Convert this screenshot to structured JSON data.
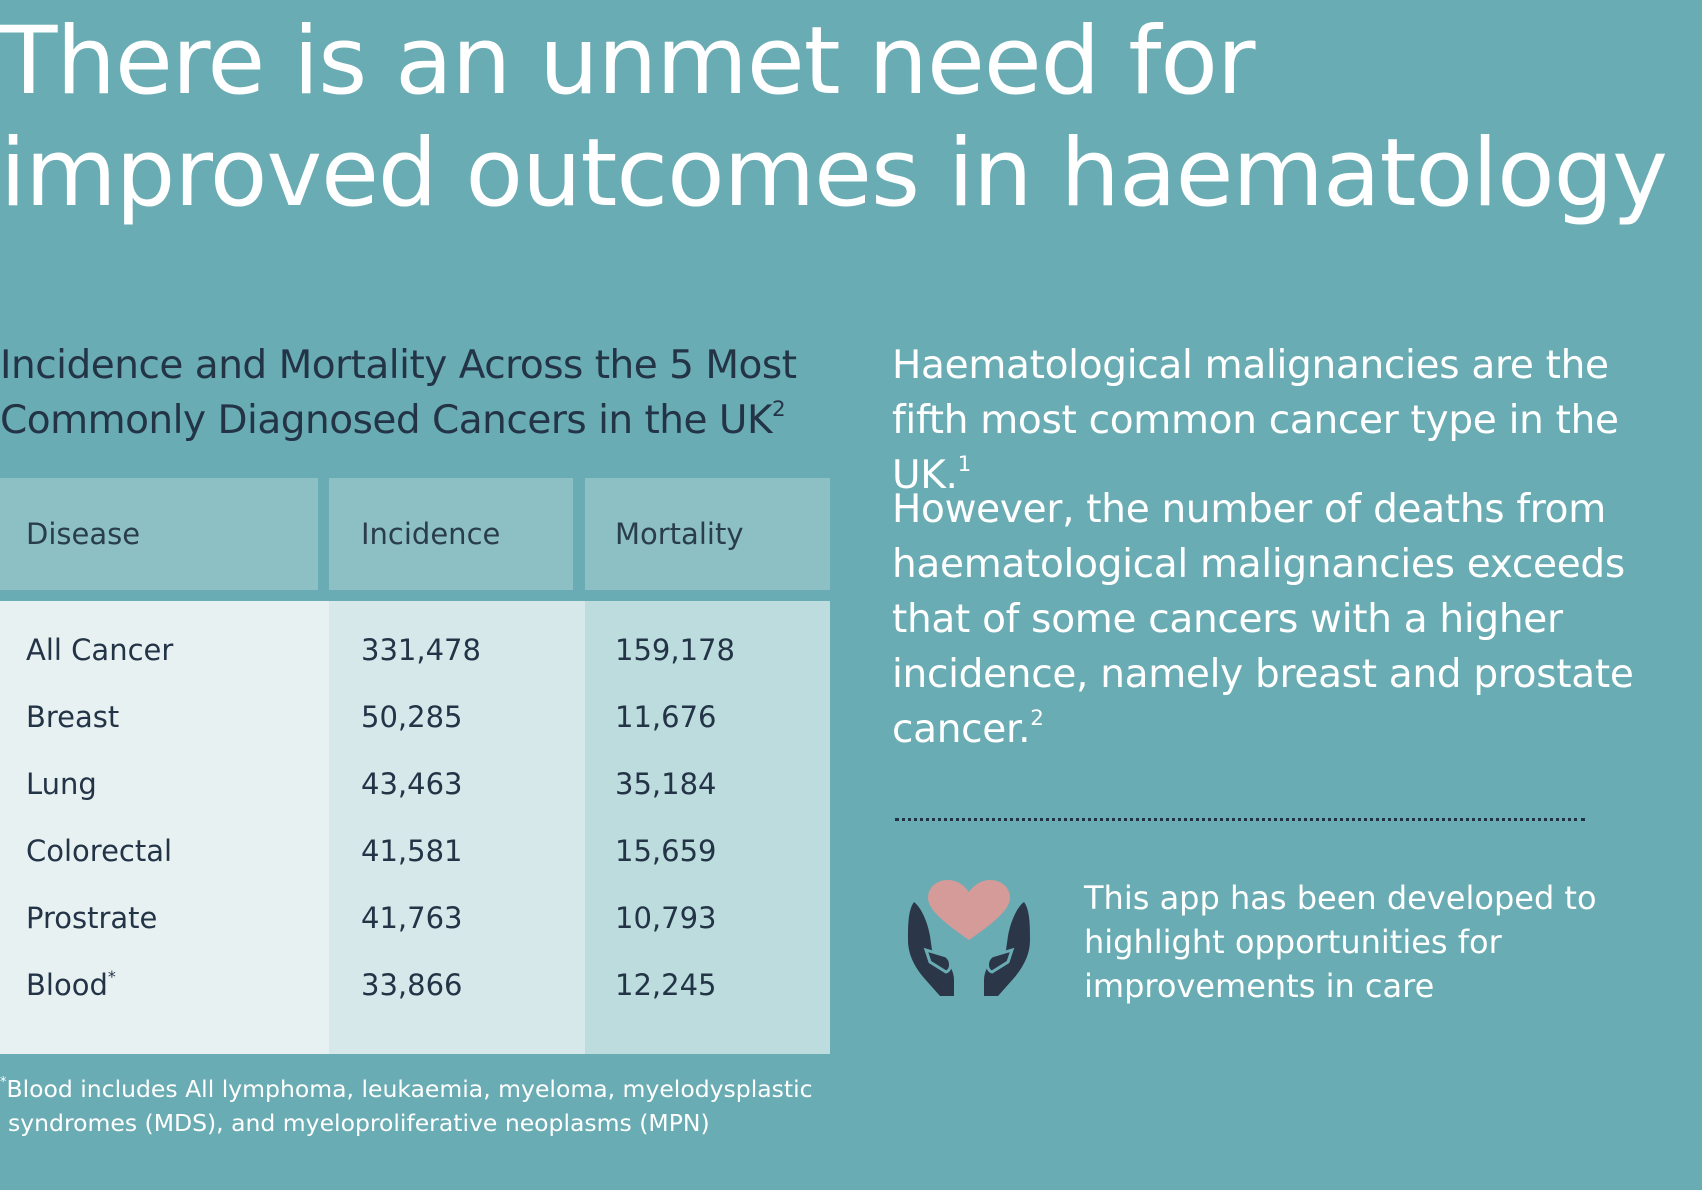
{
  "title": {
    "line1": "There is an unmet need for",
    "line2": "improved outcomes in haematology"
  },
  "table_section": {
    "heading_line1": "Incidence and Mortality Across the 5 Most",
    "heading_line2": "Commonly Diagnosed Cancers in the UK",
    "heading_ref": "2",
    "columns": [
      "Disease",
      "Incidence",
      "Mortality"
    ],
    "rows": [
      {
        "disease": "All Cancer",
        "incidence": "331,478",
        "mortality": "159,178"
      },
      {
        "disease": "Breast",
        "incidence": "50,285",
        "mortality": "11,676"
      },
      {
        "disease": "Lung",
        "incidence": "43,463",
        "mortality": "35,184"
      },
      {
        "disease": "Colorectal",
        "incidence": "41,581",
        "mortality": "15,659"
      },
      {
        "disease": "Prostrate",
        "incidence": "41,763",
        "mortality": "10,793"
      },
      {
        "disease": "Blood",
        "incidence": "33,866",
        "mortality": "12,245"
      }
    ],
    "blood_marker": "*",
    "footnote_marker": "*",
    "footnote_line1": "Blood includes All lymphoma, leukaemia, myeloma, myelodysplastic",
    "footnote_line2": "syndromes (MDS), and myeloproliferative neoplasms (MPN)"
  },
  "right_panel": {
    "para1": "Haematological malignancies are the fifth most common cancer type in the UK.",
    "para1_ref": "1",
    "para2": "However, the number of deaths from haematological malignancies exceeds that of some cancers with a higher incidence, namely breast and prostate cancer.",
    "para2_ref": "2",
    "icon": "heart-in-hands-icon",
    "app_note": "This app has been developed to highlight opportunities for improvements in care"
  },
  "colors": {
    "background": "#6aacb3",
    "header_cells": "#8dc0c5",
    "disease_column": "#e8f1f2",
    "incidence_column": "#d6e8ea",
    "mortality_column": "#bcdcde",
    "text_dark": "#233447",
    "heart": "#d49b98",
    "hands": "#2b3648"
  }
}
